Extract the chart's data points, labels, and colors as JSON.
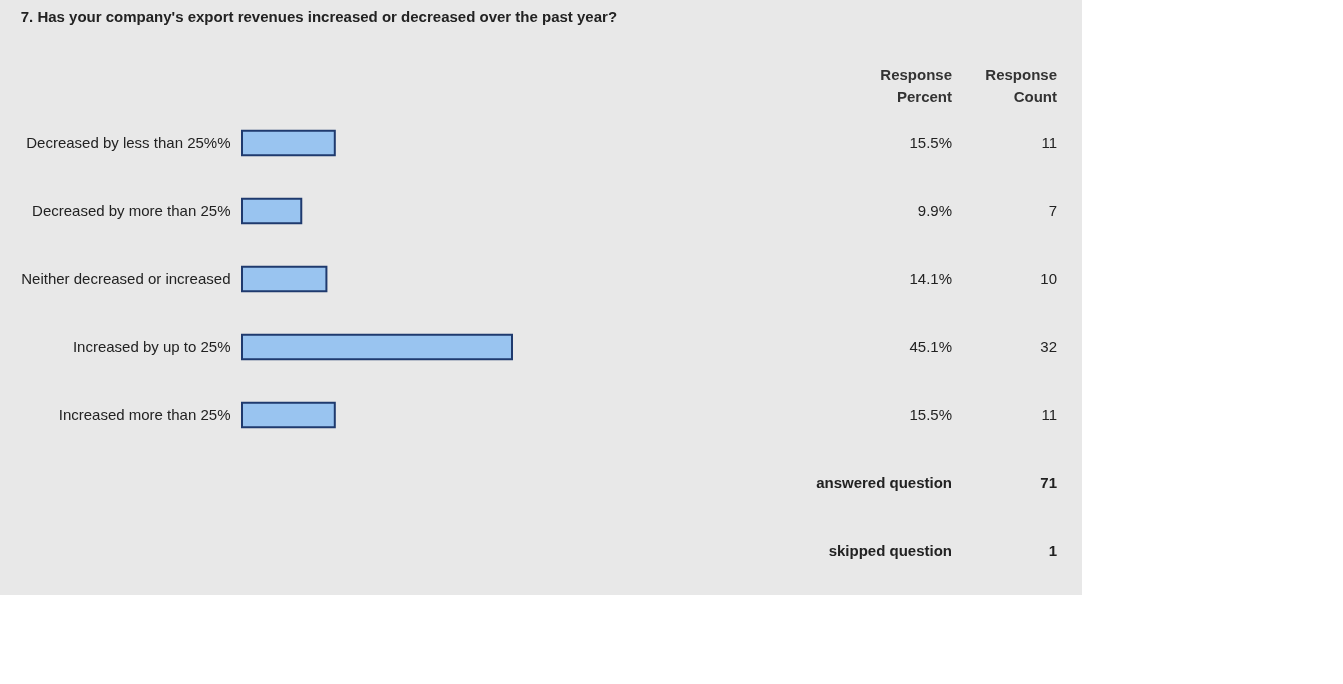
{
  "chart_data": {
    "type": "bar",
    "orientation": "horizontal",
    "title": "7. Has your company's export revenues increased or decreased over the past year?",
    "categories": [
      "Decreased by less than 25%%",
      "Decreased by more than 25%",
      "Neither decreased or increased",
      "Increased by up to 25%",
      "Increased more than 25%"
    ],
    "values": [
      15.5,
      9.9,
      14.1,
      45.1,
      15.5
    ],
    "value_labels": [
      "15.5%",
      "9.9%",
      "14.1%",
      "45.1%",
      "15.5%"
    ],
    "color": "#99c4f0",
    "tick_labels": "y",
    "annotations": [
      "Response Percent",
      "Response Count",
      "11",
      "7",
      "10",
      "32",
      "11",
      "answered question",
      "71",
      "skipped question",
      "1"
    ]
  }
}
